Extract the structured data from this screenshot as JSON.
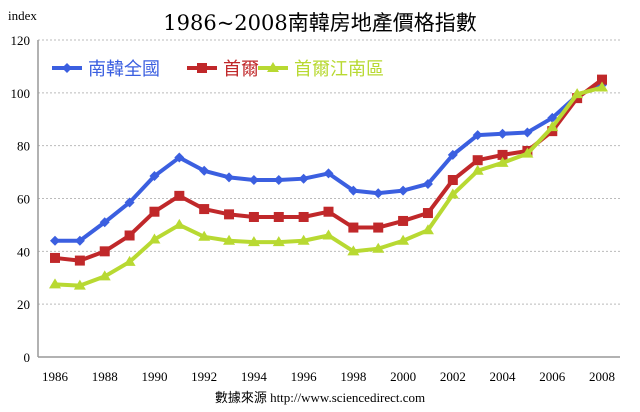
{
  "chart_data": {
    "type": "line",
    "title": "1986~2008南韓房地產價格指數",
    "ylabel": "index",
    "xlabel": "",
    "source": "數據來源 http://www.sciencedirect.com",
    "ylim": [
      0,
      120
    ],
    "yticks": [
      "0",
      "20",
      "40",
      "60",
      "80",
      "100",
      "120"
    ],
    "xticks": [
      "1986",
      "1988",
      "1990",
      "1992",
      "1994",
      "1996",
      "1998",
      "2000",
      "2002",
      "2004",
      "2006",
      "2008"
    ],
    "x": [
      1986,
      1987,
      1988,
      1989,
      1990,
      1991,
      1992,
      1993,
      1994,
      1995,
      1996,
      1997,
      1998,
      1999,
      2000,
      2001,
      2002,
      2003,
      2004,
      2005,
      2006,
      2007,
      2008
    ],
    "grid": true,
    "legend_position": "top-left",
    "series": [
      {
        "name": "南韓全國",
        "color": "#3b5fe0",
        "marker": "diamond",
        "values": [
          44,
          44,
          51,
          58.5,
          68.5,
          75.5,
          70.5,
          68,
          67,
          67,
          67.5,
          69.5,
          63,
          62,
          63,
          65.5,
          76.5,
          84,
          84.5,
          85,
          90.5,
          99,
          103
        ]
      },
      {
        "name": "首爾",
        "color": "#c0282a",
        "marker": "square",
        "values": [
          37.5,
          36.5,
          40,
          46,
          55,
          61,
          56,
          54,
          53,
          53,
          53,
          55,
          49,
          49,
          51.5,
          54.5,
          67,
          74.5,
          76.5,
          78,
          85.5,
          98,
          105
        ]
      },
      {
        "name": "首爾江南區",
        "color": "#b8d932",
        "marker": "triangle",
        "values": [
          27.5,
          27,
          30.5,
          36,
          44.5,
          50,
          45.5,
          44,
          43.5,
          43.5,
          44,
          46,
          40,
          41,
          44,
          48,
          61.5,
          70.5,
          73.5,
          77,
          87,
          99.5,
          102
        ]
      }
    ]
  }
}
